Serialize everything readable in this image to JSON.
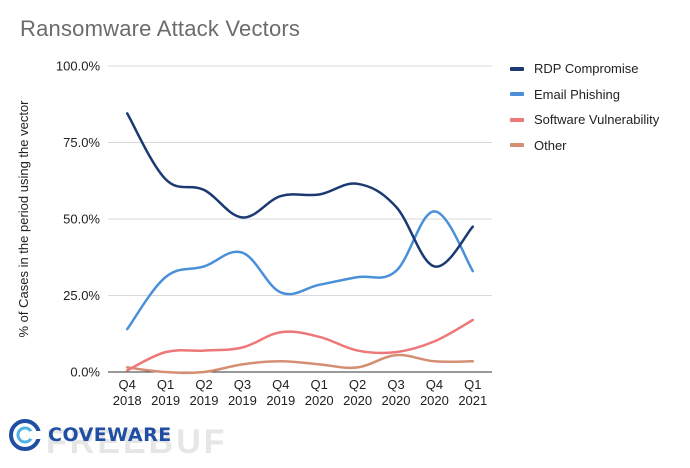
{
  "chart_data": {
    "type": "line",
    "title": "Ransomware Attack Vectors",
    "ylabel": "% of Cases in the period using the vector",
    "xlabel": "",
    "ylim": [
      0,
      100
    ],
    "y_ticks": [
      "0.0%",
      "25.0%",
      "50.0%",
      "75.0%",
      "100.0%"
    ],
    "y_tick_values": [
      0,
      25,
      50,
      75,
      100
    ],
    "grid": "horizontal",
    "legend_position": "right",
    "categories": [
      [
        "Q4",
        "2018"
      ],
      [
        "Q1",
        "2019"
      ],
      [
        "Q2",
        "2019"
      ],
      [
        "Q3",
        "2019"
      ],
      [
        "Q4",
        "2019"
      ],
      [
        "Q1",
        "2020"
      ],
      [
        "Q2",
        "2020"
      ],
      [
        "Q3",
        "2020"
      ],
      [
        "Q4",
        "2020"
      ],
      [
        "Q1",
        "2021"
      ]
    ],
    "series": [
      {
        "name": "RDP Compromise",
        "color": "#1b3a73",
        "values": [
          84.5,
          63,
          59.5,
          50.5,
          57.5,
          58,
          61.5,
          54,
          34.5,
          47.5
        ]
      },
      {
        "name": "Email Phishing",
        "color": "#4a90d9",
        "values": [
          14,
          31,
          34.5,
          39,
          26,
          28.5,
          31,
          33,
          52.5,
          33
        ]
      },
      {
        "name": "Software Vulnerability",
        "color": "#ee7778",
        "values": [
          0.5,
          6.5,
          7,
          8,
          13,
          11.5,
          7,
          6.5,
          10,
          17
        ]
      },
      {
        "name": "Other",
        "color": "#d48f72",
        "values": [
          1.5,
          0,
          0,
          2.5,
          3.5,
          2.5,
          1.5,
          5.5,
          3.5,
          3.5
        ]
      }
    ]
  },
  "logo": {
    "text": "COVEWARE",
    "icon": "coveware-logo-icon"
  },
  "watermark": "FREEBUF"
}
